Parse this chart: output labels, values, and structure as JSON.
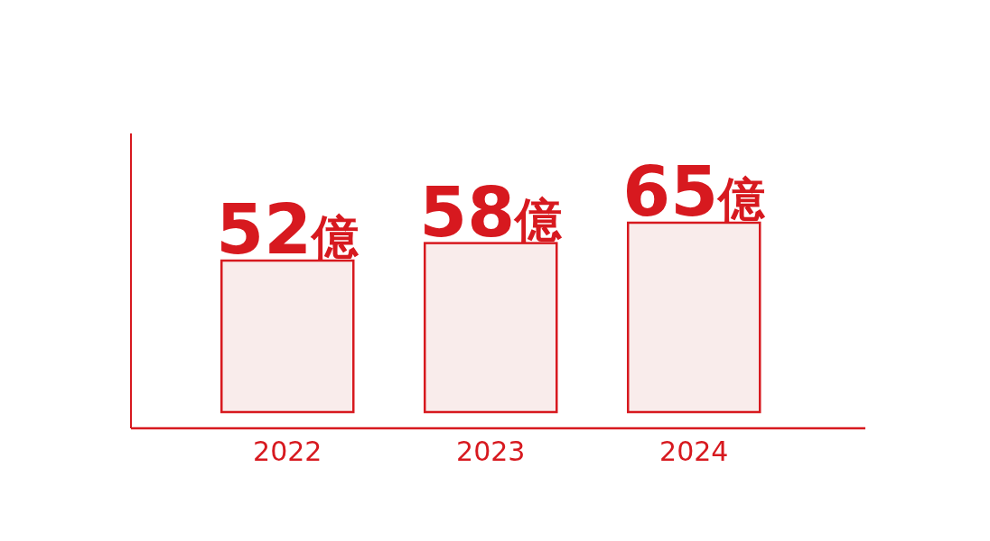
{
  "chart_data": {
    "type": "bar",
    "categories": [
      "2022",
      "2023",
      "2024"
    ],
    "values": [
      52,
      58,
      65
    ],
    "value_labels": [
      "52億",
      "58億",
      "65億"
    ],
    "color": "#f9eceb"
  }
}
